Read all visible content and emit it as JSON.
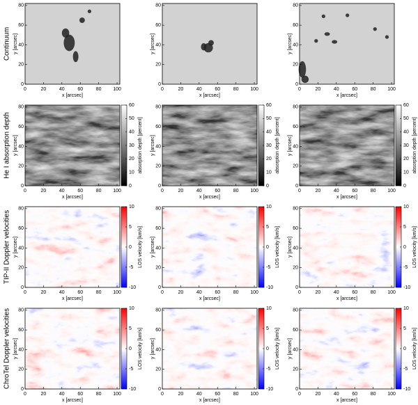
{
  "axes": {
    "xlabel": "x [arcsec]",
    "ylabel": "y [arcsec]",
    "xlim": [
      0,
      103
    ],
    "ylim": [
      0,
      82
    ],
    "xticks": [
      0,
      20,
      40,
      60,
      80,
      100
    ],
    "yticks": [
      0,
      20,
      40,
      60,
      80
    ]
  },
  "rows": [
    {
      "label": "Continuum",
      "kind": "continuum"
    },
    {
      "label": "He I absorption depth",
      "kind": "gray",
      "colorbar": {
        "label": "absorption depth [percent]",
        "lim": [
          0,
          60
        ],
        "ticks": [
          0,
          10,
          20,
          30,
          40,
          50,
          60
        ],
        "colors": [
          "#000000",
          "#ffffff"
        ]
      }
    },
    {
      "label": "TIP-II Doppler velocities",
      "kind": "doppler",
      "colorbar": {
        "label": "LOS velocity [km/s]",
        "lim": [
          -10,
          10
        ],
        "ticks": [
          -10,
          -5,
          0,
          5,
          10
        ],
        "colors": [
          "#0000ff",
          "#ffffff",
          "#ff0000"
        ]
      }
    },
    {
      "label": "ChroTel Doppler velocities",
      "kind": "doppler",
      "colorbar": {
        "label": "LOS velocity [km/s]",
        "lim": [
          -10,
          10
        ],
        "ticks": [
          -10,
          -5,
          0,
          5,
          10
        ],
        "colors": [
          "#0000ff",
          "#ffffff",
          "#ff0000"
        ]
      }
    }
  ]
}
